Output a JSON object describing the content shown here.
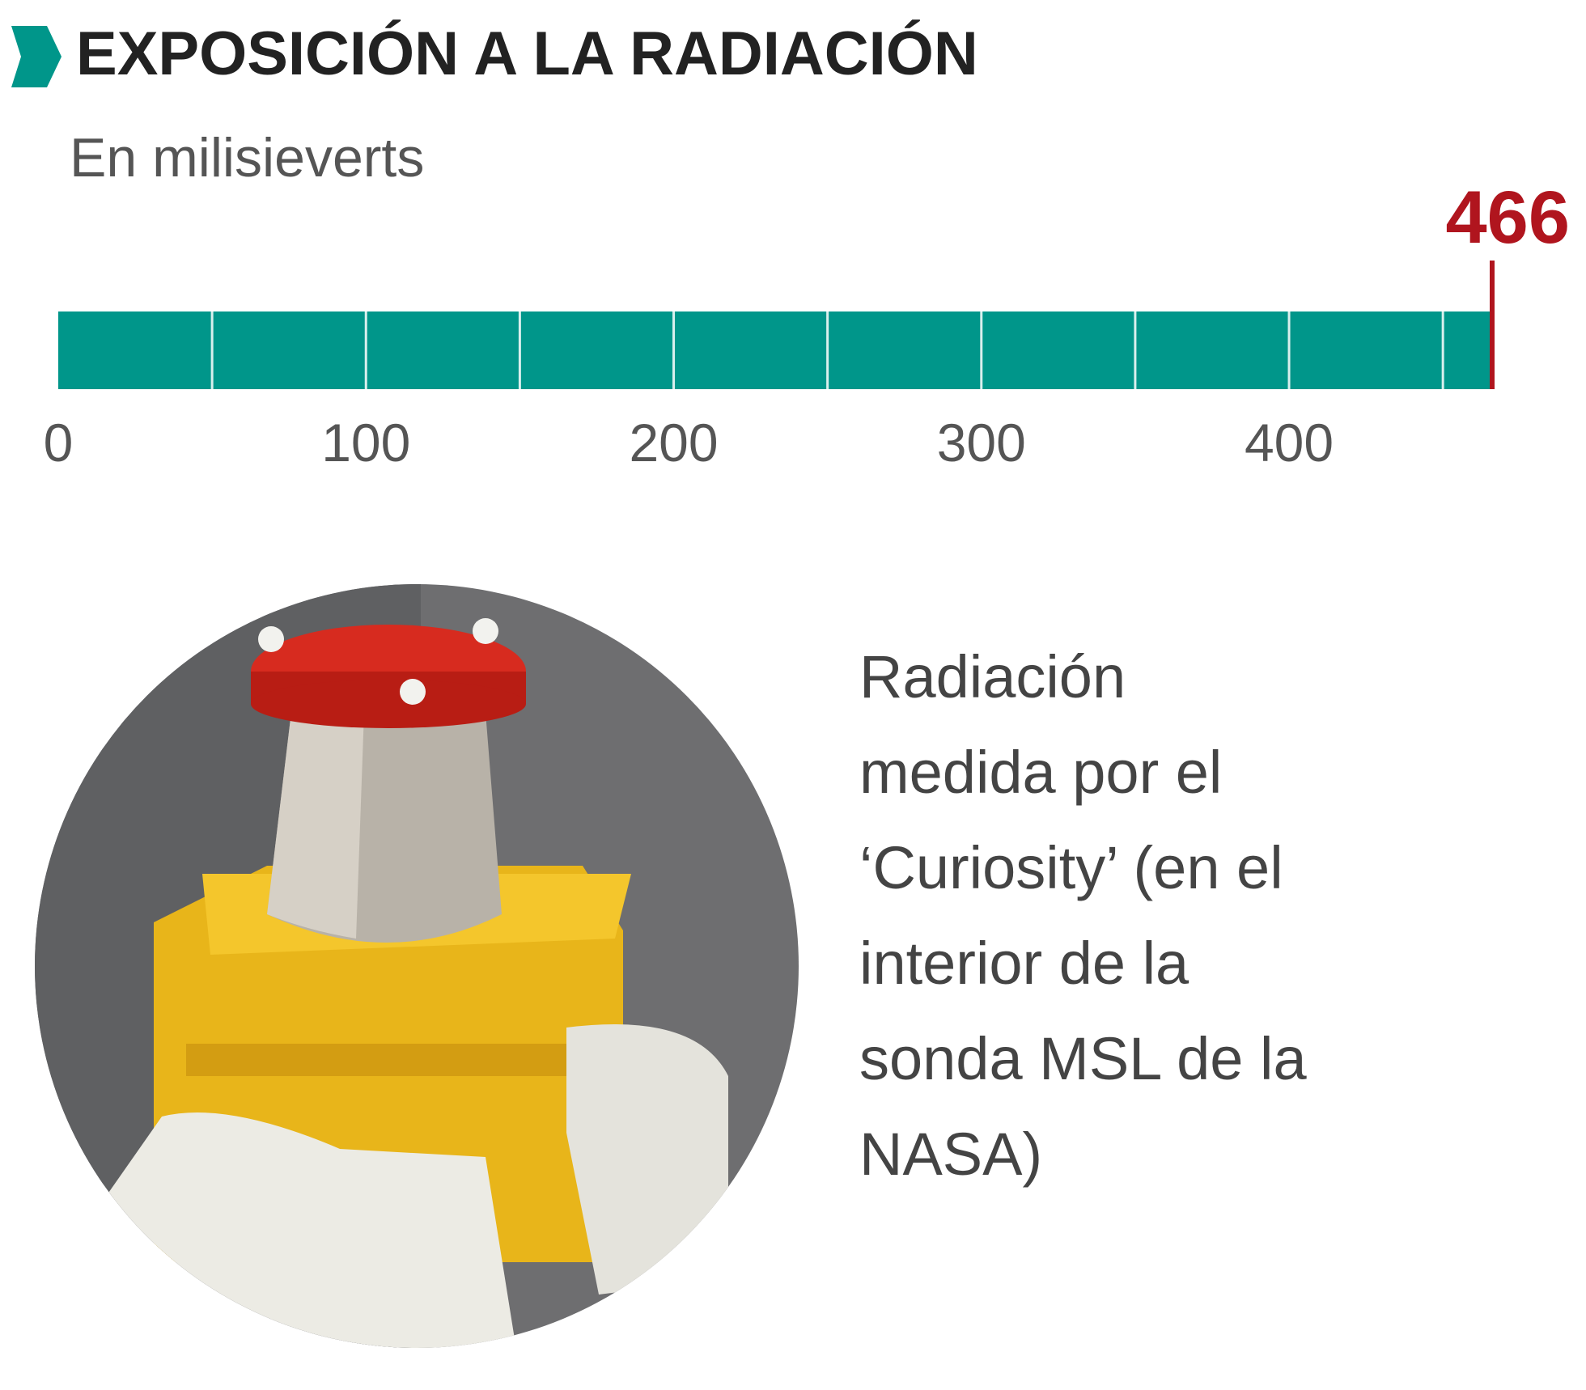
{
  "chart_data": {
    "type": "bar",
    "orientation": "horizontal",
    "title": "EXPOSICIÓN A LA RADIACIÓN",
    "subtitle": "En milisieverts",
    "values": [
      466
    ],
    "value_color": "#b0151e",
    "color": "#00968a",
    "xlim": [
      0,
      466
    ],
    "xticks": [
      0,
      100,
      200,
      300,
      400
    ],
    "gridlines": [
      50,
      100,
      150,
      200,
      250,
      300,
      350,
      400,
      450
    ],
    "caption_lines": [
      "Radiación",
      "medida por el",
      "‘Curiosity’ (en el",
      "interior de la",
      "sonda MSL de la",
      "NASA)"
    ]
  }
}
